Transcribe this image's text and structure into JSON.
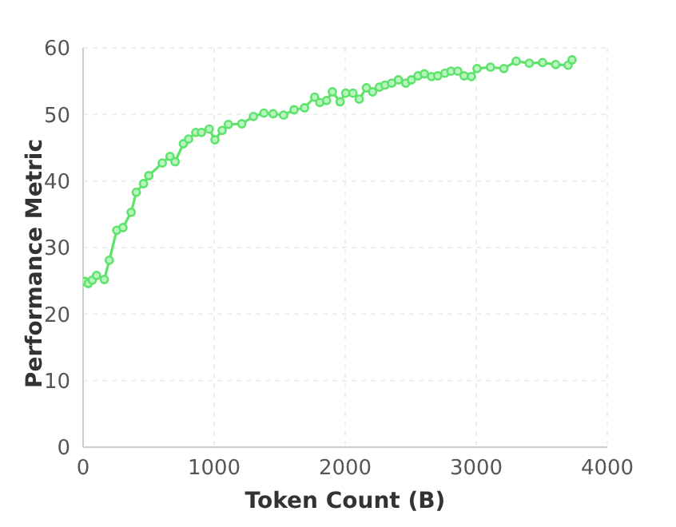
{
  "chart_data": {
    "type": "line",
    "xlabel": "Token Count (B)",
    "ylabel": "Performance Metric",
    "x": [
      15,
      40,
      70,
      103,
      162,
      200,
      257,
      304,
      367,
      406,
      461,
      501,
      604,
      663,
      702,
      765,
      805,
      860,
      903,
      962,
      1006,
      1061,
      1109,
      1211,
      1300,
      1380,
      1450,
      1530,
      1610,
      1690,
      1767,
      1806,
      1858,
      1902,
      1961,
      2004,
      2059,
      2107,
      2162,
      2209,
      2260,
      2304,
      2355,
      2406,
      2462,
      2505,
      2556,
      2604,
      2659,
      2706,
      2761,
      2808,
      2860,
      2908,
      2963,
      3006,
      3109,
      3211,
      3305,
      3405,
      3506,
      3606,
      3701,
      3731
    ],
    "series": [
      {
        "color": "#5ee36c",
        "values": [
          24.9,
          24.6,
          25.1,
          25.8,
          25.2,
          28.1,
          32.6,
          33.0,
          35.3,
          38.3,
          39.6,
          40.8,
          42.7,
          43.7,
          42.9,
          45.6,
          46.3,
          47.3,
          47.3,
          47.8,
          46.2,
          47.6,
          48.5,
          48.6,
          49.7,
          50.2,
          50.1,
          49.9,
          50.7,
          51.0,
          52.6,
          51.8,
          52.1,
          53.4,
          51.9,
          53.2,
          53.2,
          52.3,
          54.0,
          53.4,
          54.1,
          54.4,
          54.7,
          55.2,
          54.7,
          55.2,
          55.8,
          56.1,
          55.7,
          55.8,
          56.2,
          56.5,
          56.5,
          55.8,
          55.7,
          56.9,
          57.1,
          56.9,
          58.0,
          57.7,
          57.8,
          57.5,
          57.4,
          58.2
        ]
      }
    ],
    "xlim": [
      0,
      4000
    ],
    "xticks": [
      0,
      1000,
      2000,
      3000,
      4000
    ],
    "ylim": [
      0,
      60
    ],
    "yticks": [
      0,
      10,
      20,
      30,
      40,
      50,
      60
    ],
    "grid": true,
    "marker": "circle",
    "line_style": "solid"
  }
}
